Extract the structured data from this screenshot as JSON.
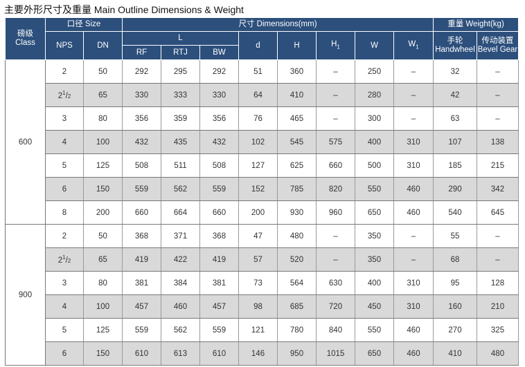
{
  "title": "主要外形尺寸及重量 Main Outline Dimensions & Weight",
  "header": {
    "class_cn": "磅级",
    "class_en": "Class",
    "size": "口径 Size",
    "dimensions": "尺寸 Dimensions(mm)",
    "weight": "重量 Weight(kg)",
    "nps": "NPS",
    "dn": "DN",
    "l": "L",
    "d": "d",
    "h": "H",
    "h1": "H1",
    "w": "W",
    "w1": "W1",
    "handwheel_cn": "手轮",
    "handwheel_en": "Handwheel",
    "bevel_cn": "传动装置",
    "bevel_en": "Bevel Gear",
    "rf": "RF",
    "rtj": "RTJ",
    "bw": "BW"
  },
  "groups": [
    {
      "class": "600",
      "rows": [
        [
          "2",
          "50",
          "292",
          "295",
          "292",
          "51",
          "360",
          "–",
          "250",
          "–",
          "32",
          "–"
        ],
        [
          "2½",
          "65",
          "330",
          "333",
          "330",
          "64",
          "410",
          "–",
          "280",
          "–",
          "42",
          "–"
        ],
        [
          "3",
          "80",
          "356",
          "359",
          "356",
          "76",
          "465",
          "–",
          "300",
          "–",
          "63",
          "–"
        ],
        [
          "4",
          "100",
          "432",
          "435",
          "432",
          "102",
          "545",
          "575",
          "400",
          "310",
          "107",
          "138"
        ],
        [
          "5",
          "125",
          "508",
          "511",
          "508",
          "127",
          "625",
          "660",
          "500",
          "310",
          "185",
          "215"
        ],
        [
          "6",
          "150",
          "559",
          "562",
          "559",
          "152",
          "785",
          "820",
          "550",
          "460",
          "290",
          "342"
        ],
        [
          "8",
          "200",
          "660",
          "664",
          "660",
          "200",
          "930",
          "960",
          "650",
          "460",
          "540",
          "645"
        ]
      ]
    },
    {
      "class": "900",
      "rows": [
        [
          "2",
          "50",
          "368",
          "371",
          "368",
          "47",
          "480",
          "–",
          "350",
          "–",
          "55",
          "–"
        ],
        [
          "2½",
          "65",
          "419",
          "422",
          "419",
          "57",
          "520",
          "–",
          "350",
          "–",
          "68",
          "–"
        ],
        [
          "3",
          "80",
          "381",
          "384",
          "381",
          "73",
          "564",
          "630",
          "400",
          "310",
          "95",
          "128"
        ],
        [
          "4",
          "100",
          "457",
          "460",
          "457",
          "98",
          "685",
          "720",
          "450",
          "310",
          "160",
          "210"
        ],
        [
          "5",
          "125",
          "559",
          "562",
          "559",
          "121",
          "780",
          "840",
          "550",
          "460",
          "270",
          "325"
        ],
        [
          "6",
          "150",
          "610",
          "613",
          "610",
          "146",
          "950",
          "1015",
          "650",
          "460",
          "410",
          "480"
        ]
      ]
    }
  ]
}
